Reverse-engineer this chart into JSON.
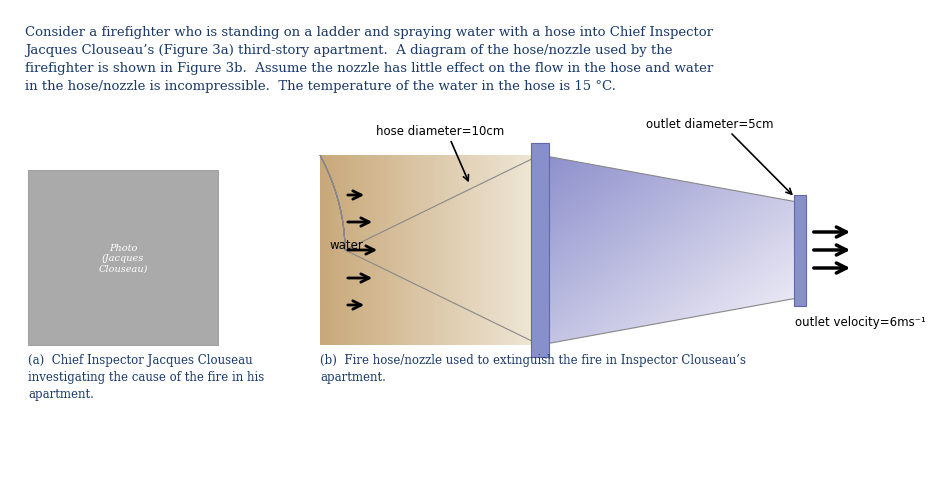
{
  "bg_color": "#ffffff",
  "text_color": "#1a3a6b",
  "header_text": "Consider a firefighter who is standing on a ladder and spraying water with a hose into Chief Inspector\nJacques Clouseau’s (Figure 3a) third-story apartment.  A diagram of the hose/nozzle used by the\nfirefighter is shown in Figure 3b.  Assume the nozzle has little effect on the flow in the hose and water\nin the hose/nozzle is incompressible.  The temperature of the water in the hose is 15 °C.",
  "caption_a": "(a)  Chief Inspector Jacques Clouseau\ninvestigating the cause of the fire in his\napartment.",
  "caption_b": "(b)  Fire hose/nozzle used to extinguish the fire in Inspector Clouseau’s\napartment.",
  "label_hose_diameter": "hose diameter=10cm",
  "label_outlet_diameter": "outlet diameter=5cm",
  "label_water": "water",
  "label_outlet_velocity": "outlet velocity=6ms⁻¹",
  "hose_color_left": "#c8a87a",
  "hose_color_right": "#f0e8d8",
  "nozzle_color_top": "#7b86c8",
  "nozzle_color_bottom": "#c8ccf0",
  "flange_color": "#8890cc",
  "arrow_color": "#1a1a1a",
  "font_size_header": 9.5,
  "font_size_labels": 8.5,
  "font_size_caption": 8.5
}
